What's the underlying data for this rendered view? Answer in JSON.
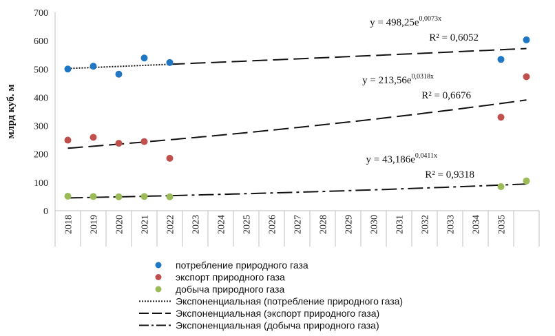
{
  "chart_data": {
    "type": "scatter",
    "categories": [
      "2018",
      "2019",
      "2020",
      "2021",
      "2022",
      "2023",
      "2024",
      "2025",
      "2026",
      "2027",
      "2028",
      "2029",
      "2030",
      "2031",
      "2032",
      "2033",
      "2034",
      "2035"
    ],
    "ylabel": "млрд куб. м",
    "ylim": [
      0,
      700
    ],
    "yticks": [
      "0",
      "100",
      "200",
      "300",
      "400",
      "500",
      "600",
      "700"
    ],
    "series": [
      {
        "name": "потребление природного газа",
        "color": "#1f77c4",
        "x": [
          1,
          2,
          3,
          4,
          5,
          18,
          19
        ],
        "values": [
          500,
          510,
          482,
          539,
          523,
          534,
          603
        ]
      },
      {
        "name": "экспорт природного газа",
        "color": "#c0504d",
        "x": [
          1,
          2,
          3,
          4,
          5,
          18,
          19
        ],
        "values": [
          249,
          259,
          238,
          244,
          185,
          330,
          473
        ]
      },
      {
        "name": "добыча природного газа",
        "color": "#9bbb59",
        "x": [
          1,
          2,
          3,
          4,
          5,
          18,
          19
        ],
        "values": [
          51,
          50,
          49,
          50,
          49,
          85,
          105
        ]
      }
    ],
    "trendlines": [
      {
        "name": "Экспоненциальная (потребление природного газа)",
        "style": "dotted-then-dashed",
        "a": 498.25,
        "b": 0.0073,
        "equation_y": "y = 498,25e",
        "equation_exp": "0,0073x",
        "r2": "R² = 0,6052"
      },
      {
        "name": "Экспоненциальная (экспорт природного газа)",
        "style": "dash",
        "a": 213.56,
        "b": 0.0318,
        "equation_y": "y = 213,56e",
        "equation_exp": "0,0318x",
        "r2": "R² = 0,6676"
      },
      {
        "name": "Экспоненциальная (добыча природного газа)",
        "style": "dash-dot",
        "a": 43.186,
        "b": 0.0411,
        "equation_y": "y = 43,186e",
        "equation_exp": "0,0411x",
        "r2": "R² = 0,9318"
      }
    ],
    "grid": false,
    "legend": "bottom"
  }
}
